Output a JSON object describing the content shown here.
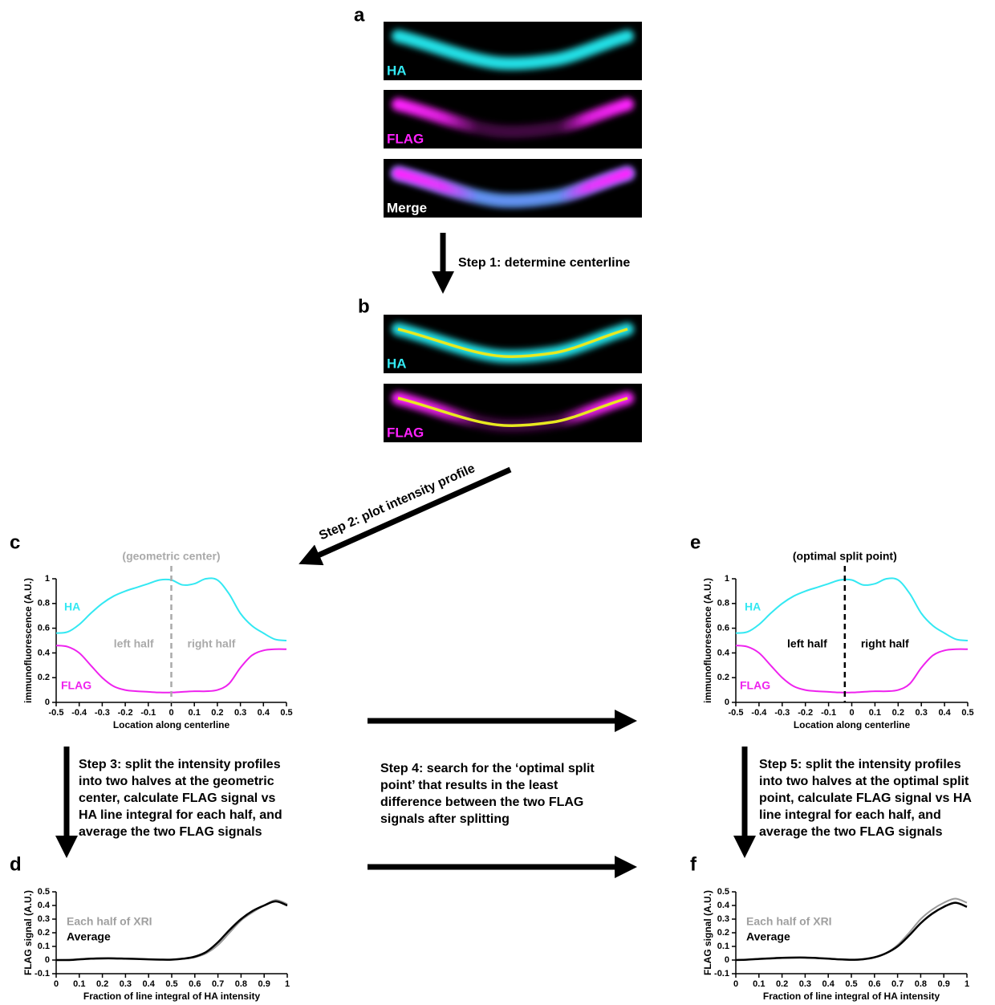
{
  "panel_labels": [
    "a",
    "b",
    "c",
    "d",
    "e",
    "f"
  ],
  "images": [
    {
      "label": "HA"
    },
    {
      "label": "FLAG"
    },
    {
      "label": "Merge"
    },
    {
      "label": "HA"
    },
    {
      "label": "FLAG"
    }
  ],
  "steps": [
    [
      "Step 1: determine centerline"
    ],
    [
      "Step 2: plot intensity profile"
    ],
    [
      "Step 3: split the intensity profiles",
      "into two halves at the geometric",
      "center, calculate FLAG signal vs",
      "HA line integral for each half, and",
      "average the two FLAG signals"
    ],
    [
      "Step 4: search for the ‘optimal split",
      "point’ that results in the least",
      "difference between the two FLAG",
      "signals after splitting"
    ],
    [
      "Step 5: split the intensity profiles",
      "into two halves at the optimal split",
      "point, calculate FLAG signal vs HA",
      "line integral for each half, and",
      "average the two FLAG signals"
    ]
  ],
  "chart_data": [
    {
      "type": "line",
      "xlabel": "Location along centerline",
      "ylabel": "immunofluorescence (A.U.)",
      "x": [
        -0.5,
        -0.45,
        -0.4,
        -0.35,
        -0.3,
        -0.25,
        -0.2,
        -0.15,
        -0.1,
        -0.05,
        0,
        0.05,
        0.1,
        0.15,
        0.2,
        0.25,
        0.3,
        0.35,
        0.4,
        0.45,
        0.5
      ],
      "series": [
        {
          "name": "HA",
          "color": "#33e8f2",
          "values": [
            0.56,
            0.57,
            0.63,
            0.72,
            0.8,
            0.86,
            0.9,
            0.93,
            0.96,
            0.99,
            0.99,
            0.95,
            0.96,
            1.0,
            0.99,
            0.88,
            0.72,
            0.62,
            0.56,
            0.51,
            0.5
          ]
        },
        {
          "name": "FLAG",
          "color": "#ee22ee",
          "values": [
            0.46,
            0.45,
            0.4,
            0.3,
            0.2,
            0.13,
            0.1,
            0.09,
            0.085,
            0.08,
            0.08,
            0.085,
            0.09,
            0.09,
            0.1,
            0.15,
            0.28,
            0.38,
            0.42,
            0.43,
            0.43
          ]
        }
      ],
      "xlim": [
        -0.5,
        0.5
      ],
      "ylim": [
        0,
        1
      ],
      "xticks": [
        -0.5,
        -0.4,
        -0.3,
        -0.2,
        -0.1,
        0,
        0.1,
        0.2,
        0.3,
        0.4,
        0.5
      ],
      "yticks": [
        0,
        0.2,
        0.4,
        0.6,
        0.8,
        1
      ],
      "split": {
        "x": 0,
        "label": "(geometric center)",
        "color": "#aaaaaa"
      },
      "halves": [
        "left half",
        "right half"
      ]
    },
    {
      "type": "line",
      "xlabel": "Fraction of line integral of HA intensity",
      "ylabel": "FLAG signal (A.U.)",
      "x": [
        0,
        0.05,
        0.1,
        0.15,
        0.2,
        0.25,
        0.3,
        0.35,
        0.4,
        0.45,
        0.5,
        0.55,
        0.6,
        0.65,
        0.7,
        0.75,
        0.8,
        0.85,
        0.9,
        0.95,
        1
      ],
      "series": [
        {
          "name": "Each half of XRI",
          "color": "#999999",
          "values": [
            0,
            0.002,
            0.006,
            0.012,
            0.015,
            0.014,
            0.012,
            0.009,
            0.006,
            0.004,
            0.004,
            0.01,
            0.02,
            0.05,
            0.11,
            0.2,
            0.29,
            0.35,
            0.4,
            0.44,
            0.41
          ]
        },
        {
          "name": "Average",
          "color": "#000000",
          "values": [
            0,
            0,
            0.005,
            0.01,
            0.012,
            0.012,
            0.01,
            0.008,
            0.005,
            0.003,
            0.003,
            0.01,
            0.025,
            0.06,
            0.13,
            0.22,
            0.3,
            0.36,
            0.4,
            0.43,
            0.4
          ]
        }
      ],
      "xlim": [
        0,
        1
      ],
      "ylim": [
        -0.1,
        0.5
      ],
      "xticks": [
        0,
        0.1,
        0.2,
        0.3,
        0.4,
        0.5,
        0.6,
        0.7,
        0.8,
        0.9,
        1
      ],
      "yticks": [
        -0.1,
        0,
        0.1,
        0.2,
        0.3,
        0.4,
        0.5
      ],
      "legend": "upper left"
    },
    {
      "type": "line",
      "xlabel": "Location along centerline",
      "ylabel": "immunofluorescence (A.U.)",
      "x": [
        -0.5,
        -0.45,
        -0.4,
        -0.35,
        -0.3,
        -0.25,
        -0.2,
        -0.15,
        -0.1,
        -0.05,
        0,
        0.05,
        0.1,
        0.15,
        0.2,
        0.25,
        0.3,
        0.35,
        0.4,
        0.45,
        0.5
      ],
      "series": [
        {
          "name": "HA",
          "color": "#33e8f2",
          "values": [
            0.56,
            0.57,
            0.63,
            0.72,
            0.8,
            0.86,
            0.9,
            0.93,
            0.96,
            0.99,
            0.99,
            0.95,
            0.96,
            1.0,
            0.99,
            0.88,
            0.72,
            0.62,
            0.56,
            0.51,
            0.5
          ]
        },
        {
          "name": "FLAG",
          "color": "#ee22ee",
          "values": [
            0.46,
            0.45,
            0.4,
            0.3,
            0.2,
            0.13,
            0.1,
            0.09,
            0.085,
            0.08,
            0.08,
            0.085,
            0.09,
            0.09,
            0.1,
            0.15,
            0.28,
            0.38,
            0.42,
            0.43,
            0.43
          ]
        }
      ],
      "xlim": [
        -0.5,
        0.5
      ],
      "ylim": [
        0,
        1
      ],
      "xticks": [
        -0.5,
        -0.4,
        -0.3,
        -0.2,
        -0.1,
        0,
        0.1,
        0.2,
        0.3,
        0.4,
        0.5
      ],
      "yticks": [
        0,
        0.2,
        0.4,
        0.6,
        0.8,
        1
      ],
      "split": {
        "x": -0.03,
        "label": "(optimal split point)",
        "color": "#000000"
      },
      "halves": [
        "left half",
        "right half"
      ]
    },
    {
      "type": "line",
      "xlabel": "Fraction of line integral of HA intensity",
      "ylabel": "FLAG signal (A.U.)",
      "x": [
        0,
        0.05,
        0.1,
        0.15,
        0.2,
        0.25,
        0.3,
        0.35,
        0.4,
        0.45,
        0.5,
        0.55,
        0.6,
        0.65,
        0.7,
        0.75,
        0.8,
        0.85,
        0.9,
        0.95,
        1
      ],
      "series": [
        {
          "name": "Each half of XRI",
          "color": "#999999",
          "values": [
            0,
            0.003,
            0.008,
            0.014,
            0.018,
            0.02,
            0.02,
            0.016,
            0.01,
            0.004,
            0,
            0.004,
            0.018,
            0.05,
            0.11,
            0.2,
            0.3,
            0.37,
            0.42,
            0.45,
            0.42
          ]
        },
        {
          "name": "Average",
          "color": "#000000",
          "values": [
            0,
            0.003,
            0.008,
            0.012,
            0.016,
            0.018,
            0.018,
            0.015,
            0.01,
            0.005,
            0.002,
            0.006,
            0.02,
            0.05,
            0.1,
            0.18,
            0.27,
            0.34,
            0.39,
            0.42,
            0.39
          ]
        }
      ],
      "xlim": [
        0,
        1
      ],
      "ylim": [
        -0.1,
        0.5
      ],
      "xticks": [
        0,
        0.1,
        0.2,
        0.3,
        0.4,
        0.5,
        0.6,
        0.7,
        0.8,
        0.9,
        1
      ],
      "yticks": [
        -0.1,
        0,
        0.1,
        0.2,
        0.3,
        0.4,
        0.5
      ],
      "legend": "upper left"
    }
  ]
}
